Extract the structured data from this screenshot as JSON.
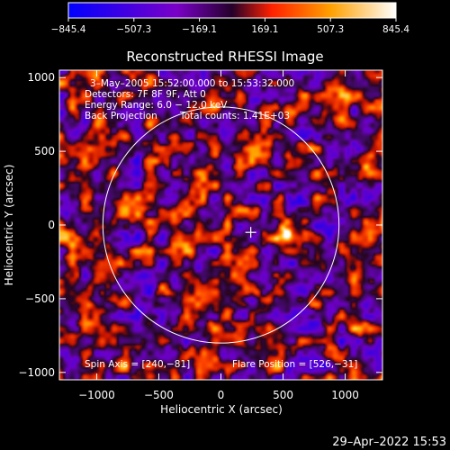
{
  "chart_data": {
    "type": "heatmap",
    "title": "Reconstructed RHESSI Image",
    "xlabel": "Heliocentric X (arcsec)",
    "ylabel": "Heliocentric Y (arcsec)",
    "xlim": [
      -1300,
      1300
    ],
    "ylim": [
      -1050,
      1050
    ],
    "x_ticks": [
      -1000,
      -500,
      0,
      500,
      1000
    ],
    "x_tick_labels": [
      "−1000",
      "−500",
      "0",
      "500",
      "1000"
    ],
    "y_ticks": [
      -1000,
      -500,
      0,
      500,
      1000
    ],
    "y_tick_labels": [
      "−1000",
      "−500",
      "0",
      "500",
      "1000"
    ],
    "colorbar": {
      "min": -845.4,
      "max": 845.4,
      "ticks": [
        -845.4,
        -507.3,
        -169.1,
        169.1,
        507.3,
        845.4
      ],
      "tick_labels": [
        "−845.4",
        "−507.3",
        "−169.1",
        "169.1",
        "507.3",
        "845.4"
      ],
      "colors": [
        "#0000ff",
        "#7a00c8",
        "#ff3000",
        "#ffa000",
        "#ffffff"
      ]
    },
    "solar_limb_radius": 950,
    "flare_marker": [
      240,
      -50
    ],
    "bright_source": {
      "x": 525,
      "y": -15,
      "value": 845.4
    },
    "annotations": {
      "time_range": "3–May–2005 15:52:00.000 to 15:53:32.000",
      "detectors": "Detectors: 7F 8F 9F, Att 0",
      "energy_range": "Energy Range: 6.0 − 12.0 keV",
      "method": "Back Projection",
      "total_counts": "Total counts: 1.41E+03",
      "spin_axis": "Spin Axis = [240,−81]",
      "flare_position": "Flare Position = [526,−31]"
    }
  },
  "footer": {
    "timestamp": "29–Apr–2022 15:53"
  }
}
